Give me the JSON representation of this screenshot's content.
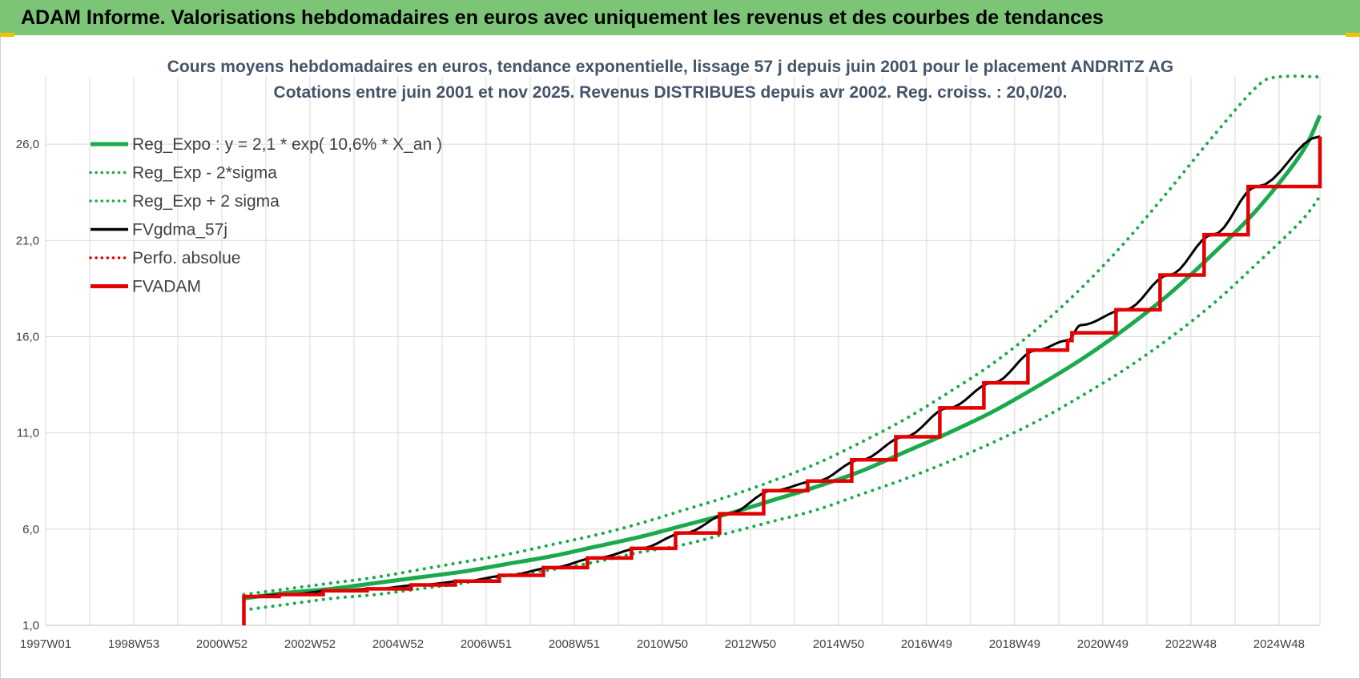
{
  "banner": {
    "title": "ADAM Informe. Valorisations hebdomadaires en euros avec uniquement les revenus et des courbes de tendances"
  },
  "colors": {
    "banner_bg": "#7cc576",
    "trend_green": "#1aaa4b",
    "red": "#e40000",
    "black": "#000000",
    "grid": "#d9d9d9"
  },
  "chart_data": {
    "type": "line",
    "title": "Cours moyens hebdomadaires en euros, tendance exponentielle, lissage 57 j depuis juin 2001 pour le placement ANDRITZ AG",
    "subtitle": "Cotations entre juin 2001 et nov 2025. Revenus DISTRIBUES depuis avr 2002. Reg. croiss. : 20,0/20.",
    "xlabel": "",
    "ylabel": "",
    "xlim": [
      1997.0,
      2025.93
    ],
    "ylim": [
      1.0,
      29.5
    ],
    "grid": true,
    "legend_position": "top-left",
    "x_ticks": [
      {
        "label": "1997W01",
        "x": 1997.0
      },
      {
        "label": "1998W53",
        "x": 1999.0
      },
      {
        "label": "2000W52",
        "x": 2001.0
      },
      {
        "label": "2002W52",
        "x": 2003.0
      },
      {
        "label": "2004W52",
        "x": 2005.0
      },
      {
        "label": "2006W51",
        "x": 2007.0
      },
      {
        "label": "2008W51",
        "x": 2009.0
      },
      {
        "label": "2010W50",
        "x": 2011.0
      },
      {
        "label": "2012W50",
        "x": 2013.0
      },
      {
        "label": "2014W50",
        "x": 2015.0
      },
      {
        "label": "2016W49",
        "x": 2017.0
      },
      {
        "label": "2018W49",
        "x": 2019.0
      },
      {
        "label": "2020W49",
        "x": 2021.0
      },
      {
        "label": "2022W48",
        "x": 2023.0
      },
      {
        "label": "2024W48",
        "x": 2025.0
      }
    ],
    "y_ticks": [
      {
        "label": "1,0",
        "y": 1.0
      },
      {
        "label": "6,0",
        "y": 6.0
      },
      {
        "label": "11,0",
        "y": 11.0
      },
      {
        "label": "16,0",
        "y": 16.0
      },
      {
        "label": "21,0",
        "y": 21.0
      },
      {
        "label": "26,0",
        "y": 26.0
      }
    ],
    "series": [
      {
        "name": "Reg_Expo : y = 2,1 * exp( 10,6% *  X_an )",
        "style": "solid-thick",
        "color": "#1aaa4b",
        "x": [
          2001.5,
          2002.5,
          2003.5,
          2004.5,
          2005.5,
          2006.5,
          2007.5,
          2008.5,
          2009.5,
          2010.5,
          2011.5,
          2012.5,
          2013.5,
          2014.5,
          2015.5,
          2016.5,
          2017.5,
          2018.5,
          2019.5,
          2020.5,
          2021.5,
          2022.5,
          2023.5,
          2024.5,
          2025.5,
          2025.93
        ],
        "y": [
          2.4,
          2.7,
          2.9,
          3.2,
          3.5,
          3.8,
          4.2,
          4.6,
          5.1,
          5.6,
          6.2,
          6.8,
          7.5,
          8.2,
          9.0,
          10.0,
          11.0,
          12.1,
          13.4,
          14.8,
          16.4,
          18.2,
          20.3,
          22.6,
          25.5,
          27.5
        ]
      },
      {
        "name": "Reg_Exp - 2*sigma",
        "style": "dotted",
        "color": "#1aaa4b",
        "x": [
          2001.5,
          2002.5,
          2003.5,
          2004.5,
          2005.5,
          2006.5,
          2007.5,
          2008.5,
          2009.5,
          2010.5,
          2011.5,
          2012.5,
          2013.5,
          2014.5,
          2015.5,
          2016.5,
          2017.5,
          2018.5,
          2019.5,
          2020.5,
          2021.5,
          2022.5,
          2023.5,
          2024.5,
          2025.5,
          2025.93
        ],
        "y": [
          1.8,
          2.1,
          2.4,
          2.6,
          2.9,
          3.2,
          3.6,
          3.9,
          4.3,
          4.8,
          5.2,
          5.8,
          6.4,
          7.0,
          7.8,
          8.6,
          9.5,
          10.5,
          11.6,
          12.9,
          14.3,
          15.9,
          17.7,
          19.8,
          22.0,
          23.3
        ]
      },
      {
        "name": "Reg_Exp + 2 sigma",
        "style": "dotted",
        "color": "#1aaa4b",
        "x": [
          2001.5,
          2002.5,
          2003.5,
          2004.5,
          2005.5,
          2006.5,
          2007.5,
          2008.5,
          2009.5,
          2010.5,
          2011.5,
          2012.5,
          2013.5,
          2014.5,
          2015.5,
          2016.5,
          2017.5,
          2018.5,
          2019.5,
          2020.5,
          2021.5,
          2022.5,
          2023.5,
          2024.5,
          2025.0,
          2025.93
        ],
        "y": [
          2.6,
          2.9,
          3.2,
          3.5,
          3.9,
          4.3,
          4.7,
          5.2,
          5.7,
          6.3,
          7.0,
          7.7,
          8.5,
          9.4,
          10.5,
          11.7,
          13.1,
          14.6,
          16.4,
          18.5,
          20.9,
          23.6,
          26.4,
          29.0,
          29.5,
          29.5
        ]
      },
      {
        "name": "FVgdma_57j",
        "style": "solid",
        "color": "#000000",
        "x": [
          2001.5,
          2002.5,
          2003.5,
          2004.5,
          2005.5,
          2006.5,
          2007.5,
          2008.5,
          2009.5,
          2010.5,
          2011.5,
          2012.5,
          2013.5,
          2014.5,
          2015.5,
          2016.5,
          2017.5,
          2018.5,
          2019.5,
          2020.2,
          2020.5,
          2021.5,
          2022.5,
          2023.5,
          2024.5,
          2025.93
        ],
        "y": [
          2.5,
          2.6,
          2.8,
          2.9,
          3.1,
          3.3,
          3.6,
          4.0,
          4.5,
          5.0,
          5.8,
          6.8,
          8.0,
          8.5,
          9.6,
          10.8,
          12.3,
          13.6,
          15.3,
          15.8,
          16.6,
          17.4,
          19.2,
          21.3,
          23.8,
          26.4
        ]
      },
      {
        "name": "Perfo. absolue",
        "style": "dotted",
        "color": "#e40000",
        "x": [],
        "y": []
      },
      {
        "name": "FVADAM",
        "style": "step-thick",
        "color": "#e40000",
        "x": [
          2001.5,
          2001.5,
          2002.3,
          2003.3,
          2004.3,
          2005.3,
          2006.3,
          2007.3,
          2008.3,
          2009.3,
          2010.3,
          2011.3,
          2012.3,
          2013.3,
          2014.3,
          2015.3,
          2016.3,
          2017.3,
          2018.3,
          2019.3,
          2020.2,
          2020.3,
          2021.3,
          2022.3,
          2023.3,
          2024.3,
          2025.93
        ],
        "y": [
          1.0,
          2.5,
          2.6,
          2.8,
          2.9,
          3.1,
          3.3,
          3.6,
          4.0,
          4.5,
          5.0,
          5.8,
          6.8,
          8.0,
          8.5,
          9.6,
          10.8,
          12.3,
          13.6,
          15.3,
          15.8,
          16.2,
          17.4,
          19.2,
          21.3,
          23.8,
          26.4
        ]
      }
    ]
  }
}
